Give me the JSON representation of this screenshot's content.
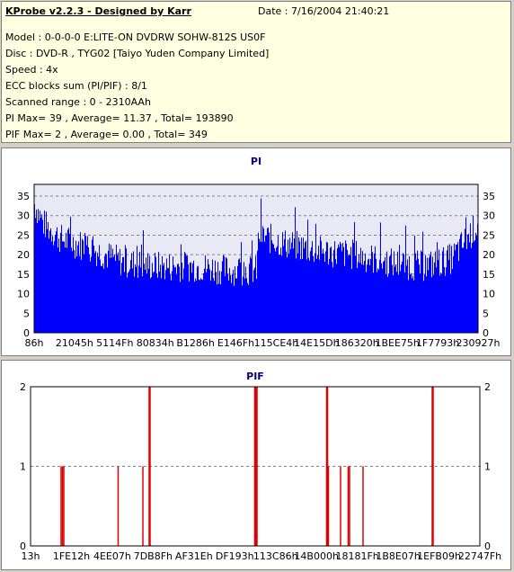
{
  "info": {
    "title": "KProbe v2.2.3 - Designed by Karr",
    "date": "Date : 7/16/2004 21:40:21",
    "lines": [
      "Model : 0-0-0-0 E:LITE-ON DVDRW SOHW-812S  US0F",
      "Disc : DVD-R , TYG02 [Taiyo Yuden Company Limited]",
      "Speed : 4x",
      "ECC blocks sum (PI/PIF) : 8/1",
      "Scanned range : 0 - 2310AAh",
      "PI Max= 39 , Average= 11.37 , Total= 193890",
      "PIF Max= 2 , Average= 0.00 , Total= 349"
    ]
  },
  "colors": {
    "bar": "#0000ff",
    "pif_bar": "#e00000",
    "plot_bg": "#e9e9f5",
    "grid": "#808080"
  },
  "chart_data": [
    {
      "type": "bar",
      "title": "PI",
      "ylim": [
        0,
        38
      ],
      "yticks": [
        0,
        5,
        10,
        15,
        20,
        25,
        30,
        35
      ],
      "xtick_labels": [
        "86h",
        "21045h",
        "5114Fh",
        "80834h",
        "B1286h",
        "E146Fh",
        "115CE4h",
        "14E15Dh",
        "186320h",
        "1BEE75h",
        "1F7793h",
        "230927h"
      ],
      "grid": true,
      "profile": [
        {
          "x": 0.0,
          "y": 33
        },
        {
          "x": 0.02,
          "y": 28
        },
        {
          "x": 0.06,
          "y": 24
        },
        {
          "x": 0.12,
          "y": 22
        },
        {
          "x": 0.2,
          "y": 18
        },
        {
          "x": 0.28,
          "y": 17
        },
        {
          "x": 0.36,
          "y": 17
        },
        {
          "x": 0.44,
          "y": 16
        },
        {
          "x": 0.5,
          "y": 16
        },
        {
          "x": 0.505,
          "y": 25
        },
        {
          "x": 0.56,
          "y": 23
        },
        {
          "x": 0.64,
          "y": 21
        },
        {
          "x": 0.72,
          "y": 20
        },
        {
          "x": 0.8,
          "y": 18
        },
        {
          "x": 0.88,
          "y": 17
        },
        {
          "x": 0.94,
          "y": 19
        },
        {
          "x": 0.98,
          "y": 25
        },
        {
          "x": 1.0,
          "y": 28
        }
      ]
    },
    {
      "type": "bar",
      "title": "PIF",
      "ylim": [
        0,
        2
      ],
      "yticks": [
        0,
        1,
        2
      ],
      "xtick_labels": [
        "13h",
        "1FE12h",
        "4EE07h",
        "7DB8Fh",
        "AF31Eh",
        "DF193h",
        "113C86h",
        "14B000h",
        "18181Fh",
        "1B8E07h",
        "1EFB09h",
        "22747Fh"
      ],
      "grid": true,
      "points": [
        {
          "x": 0.068,
          "y": 1
        },
        {
          "x": 0.071,
          "y": 1
        },
        {
          "x": 0.074,
          "y": 1
        },
        {
          "x": 0.195,
          "y": 1
        },
        {
          "x": 0.25,
          "y": 1
        },
        {
          "x": 0.265,
          "y": 2
        },
        {
          "x": 0.5,
          "y": 2
        },
        {
          "x": 0.503,
          "y": 2
        },
        {
          "x": 0.66,
          "y": 2
        },
        {
          "x": 0.663,
          "y": 1
        },
        {
          "x": 0.69,
          "y": 1
        },
        {
          "x": 0.707,
          "y": 1
        },
        {
          "x": 0.71,
          "y": 1
        },
        {
          "x": 0.74,
          "y": 1
        },
        {
          "x": 0.895,
          "y": 2
        }
      ]
    }
  ]
}
